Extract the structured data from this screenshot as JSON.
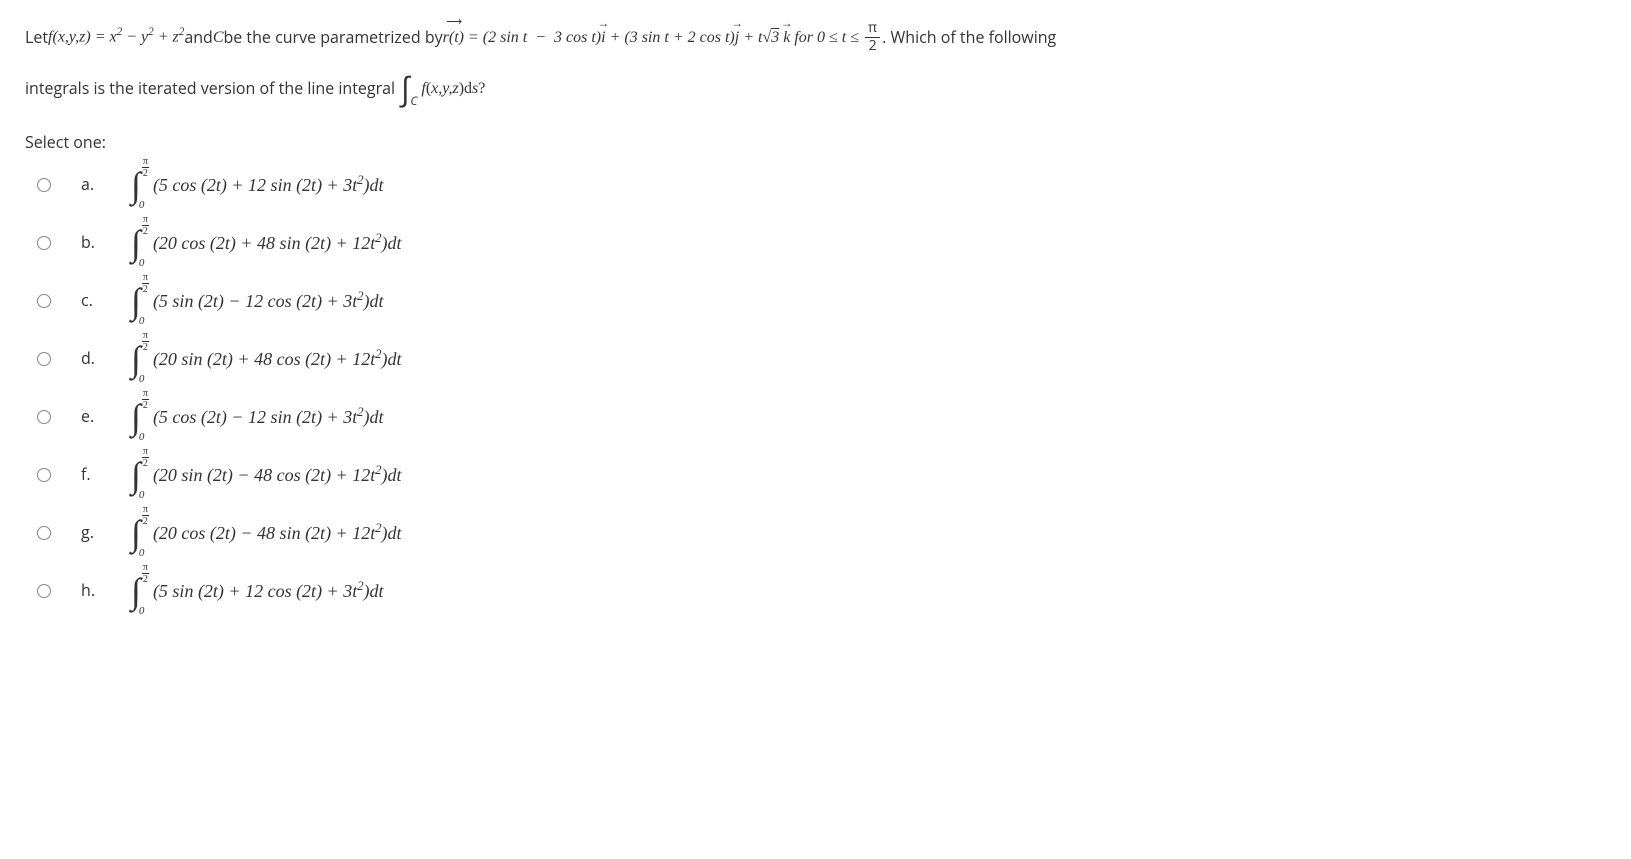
{
  "question": {
    "part1": "Let ",
    "func": "f(x,y,z) = x² − y² + z²",
    "part2": " and ",
    "curveVar": "C",
    "part3": " be the curve parametrized by ",
    "rt": "r(t)",
    "eq1": " = (2 sin t  −  3 cos t)",
    "ivec": "i",
    "plus1": " + (3 sin t + 2 cos t)",
    "jvec": "j",
    "plus2": " + t",
    "sqrt3": "3",
    "kvec": "k",
    "for": " for 0 ≤ t ≤ ",
    "piNum": "π",
    "piDen": "2",
    "part4": " . Which of the following",
    "line2a": "integrals is the iterated version of the line integral ",
    "intSub": "C",
    "intExpr": "f(x,y,z)",
    "intDs": "ds?",
    "selectOne": "Select one:"
  },
  "bounds": {
    "upperNum": "π",
    "upperDen": "2",
    "lower": "0"
  },
  "options": [
    {
      "label": "a.",
      "integrand": "(5 cos (2t) + 12 sin (2t) + 3t²)dt"
    },
    {
      "label": "b.",
      "integrand": "(20 cos (2t) + 48 sin (2t) + 12t²)dt"
    },
    {
      "label": "c.",
      "integrand": "(5 sin (2t) − 12 cos (2t) + 3t²)dt"
    },
    {
      "label": "d.",
      "integrand": "(20 sin (2t) + 48 cos (2t) + 12t²)dt"
    },
    {
      "label": "e.",
      "integrand": "(5 cos (2t) − 12 sin (2t) + 3t²)dt"
    },
    {
      "label": "f.",
      "integrand": "(20 sin (2t) − 48 cos (2t) + 12t²)dt"
    },
    {
      "label": "g.",
      "integrand": "(20 cos (2t) − 48 sin (2t) + 12t²)dt"
    },
    {
      "label": "h.",
      "integrand": "(5 sin (2t) + 12 cos (2t) + 3t²)dt"
    }
  ]
}
